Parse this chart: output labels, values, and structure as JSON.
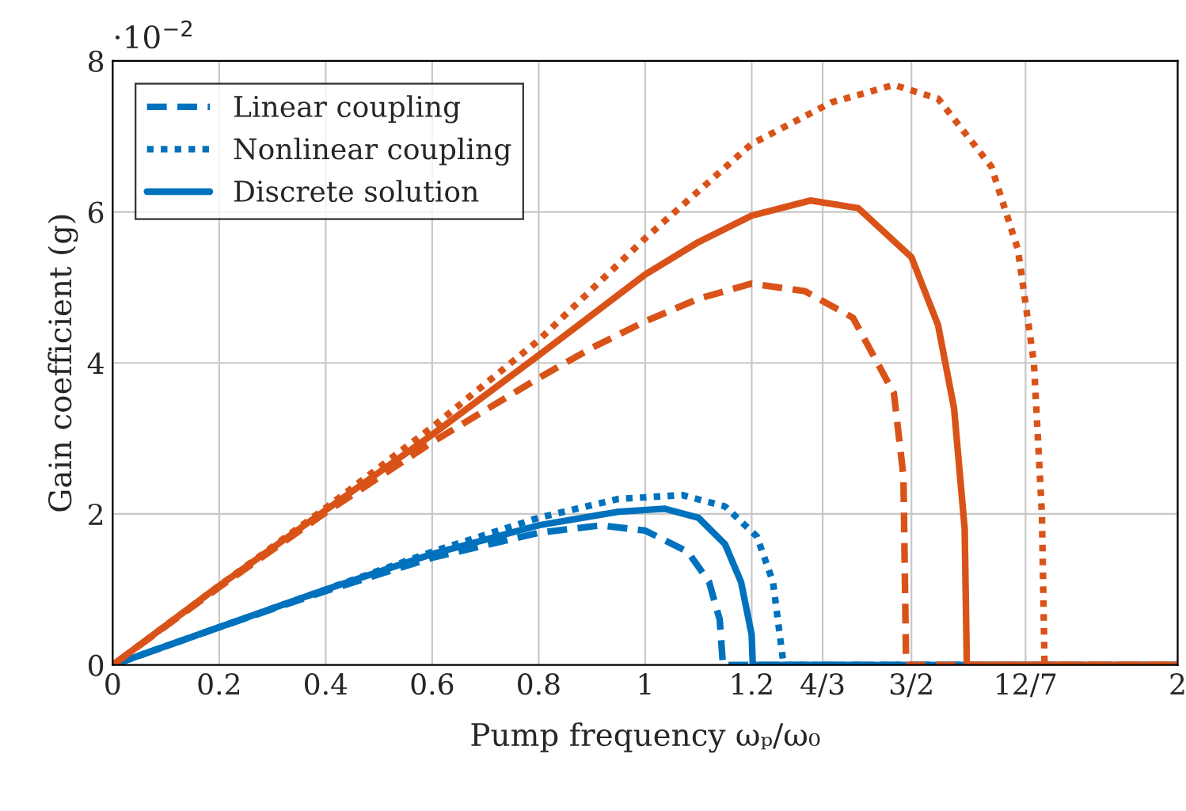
{
  "chart_data": {
    "type": "line",
    "xlabel": "Pump frequency ωₚ/ω₀",
    "ylabel": "Gain coefficient (g)",
    "annotations": [
      "·10$^{−2}$"
    ],
    "xlim": [
      0,
      2
    ],
    "ylim": [
      0,
      8
    ],
    "xticks": [
      0,
      0.2,
      0.4,
      0.6,
      0.8,
      1,
      1.2,
      {
        "value": 1.3333,
        "label": "4/3"
      },
      {
        "value": 1.5,
        "label": "3/2"
      },
      {
        "value": 1.7143,
        "label": "12/7"
      },
      2
    ],
    "yticks": [
      0,
      2,
      4,
      6,
      8
    ],
    "grid": true,
    "legend": "top left",
    "marker": "none",
    "series": [
      {
        "name": "Linear coupling",
        "color": "#0072bd",
        "line_style": "dashed",
        "x": [
          0,
          0.2,
          0.4,
          0.6,
          0.8,
          0.917,
          1.0,
          1.08,
          1.12,
          1.14,
          1.146,
          2
        ],
        "values": [
          0,
          0.5,
          0.98,
          1.42,
          1.75,
          1.85,
          1.78,
          1.5,
          1.1,
          0.6,
          0,
          0
        ]
      },
      {
        "name": "Nonlinear coupling",
        "color": "#0072bd",
        "line_style": "dotted",
        "x": [
          0,
          0.2,
          0.4,
          0.6,
          0.8,
          0.95,
          1.07,
          1.15,
          1.21,
          1.24,
          1.26,
          2
        ],
        "values": [
          0,
          0.5,
          1.0,
          1.5,
          1.95,
          2.2,
          2.25,
          2.1,
          1.7,
          1.1,
          0,
          0
        ]
      },
      {
        "name": "Discrete solution",
        "color": "#0072bd",
        "line_style": "solid",
        "x": [
          0,
          0.2,
          0.4,
          0.6,
          0.8,
          0.95,
          1.036,
          1.1,
          1.15,
          1.18,
          1.2,
          1.202,
          2
        ],
        "values": [
          0,
          0.5,
          1.0,
          1.47,
          1.85,
          2.03,
          2.07,
          1.95,
          1.6,
          1.1,
          0.4,
          0,
          0
        ]
      },
      {
        "color": "#d95319",
        "line_style": "dashed",
        "x": [
          0,
          0.2,
          0.4,
          0.6,
          0.8,
          0.9,
          1.0,
          1.1,
          1.2,
          1.3,
          1.39,
          1.467,
          1.485,
          1.49,
          2
        ],
        "values": [
          0,
          1.03,
          2.02,
          2.95,
          3.8,
          4.2,
          4.55,
          4.85,
          5.05,
          4.95,
          4.6,
          3.6,
          2.5,
          0,
          0
        ]
      },
      {
        "color": "#d95319",
        "line_style": "dotted",
        "x": [
          0,
          0.2,
          0.4,
          0.6,
          0.8,
          1.0,
          1.2,
          1.35,
          1.467,
          1.55,
          1.65,
          1.7,
          1.73,
          1.745,
          1.75,
          2
        ],
        "values": [
          0,
          1.05,
          2.08,
          3.15,
          4.3,
          5.65,
          6.9,
          7.45,
          7.68,
          7.5,
          6.6,
          5.5,
          4.0,
          2.0,
          0,
          0
        ]
      },
      {
        "color": "#d95319",
        "line_style": "solid",
        "x": [
          0,
          0.2,
          0.4,
          0.6,
          0.8,
          1.0,
          1.1,
          1.2,
          1.31,
          1.4,
          1.5,
          1.55,
          1.58,
          1.6,
          1.604,
          2
        ],
        "values": [
          0,
          1.05,
          2.05,
          3.05,
          4.1,
          5.17,
          5.6,
          5.95,
          6.15,
          6.05,
          5.4,
          4.5,
          3.4,
          1.8,
          0,
          0
        ]
      }
    ]
  }
}
